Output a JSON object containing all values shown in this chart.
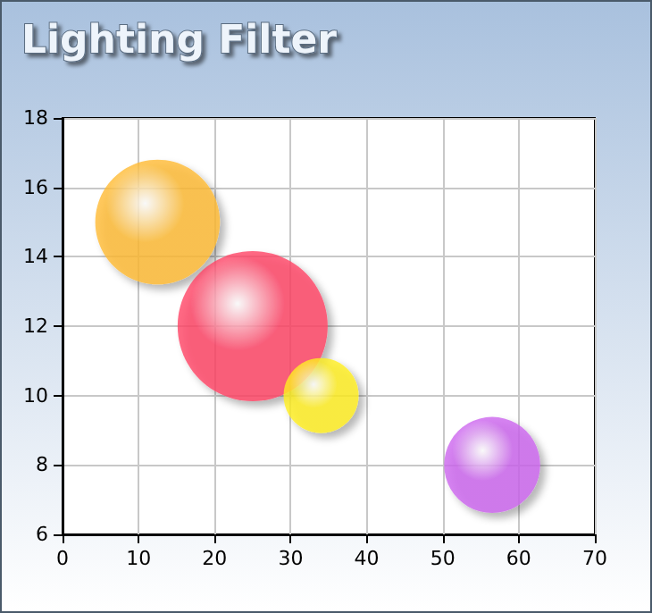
{
  "chart_data": {
    "type": "bubble",
    "title": "Lighting Filter",
    "x": [
      12.5,
      25,
      34,
      56.5
    ],
    "values": [
      15,
      12,
      10,
      8
    ],
    "sizes": [
      0.69,
      1,
      0.25,
      0.41
    ],
    "colors": [
      "#ffbb33",
      "#ff4466",
      "#ffee22",
      "#cc66ee"
    ],
    "xlim": [
      0,
      70
    ],
    "xticks": [
      0,
      10,
      20,
      30,
      40,
      50,
      60,
      70
    ],
    "ylim": [
      6,
      18
    ],
    "yticks": [
      6,
      8,
      10,
      12,
      14,
      16,
      18
    ],
    "grid": true
  }
}
